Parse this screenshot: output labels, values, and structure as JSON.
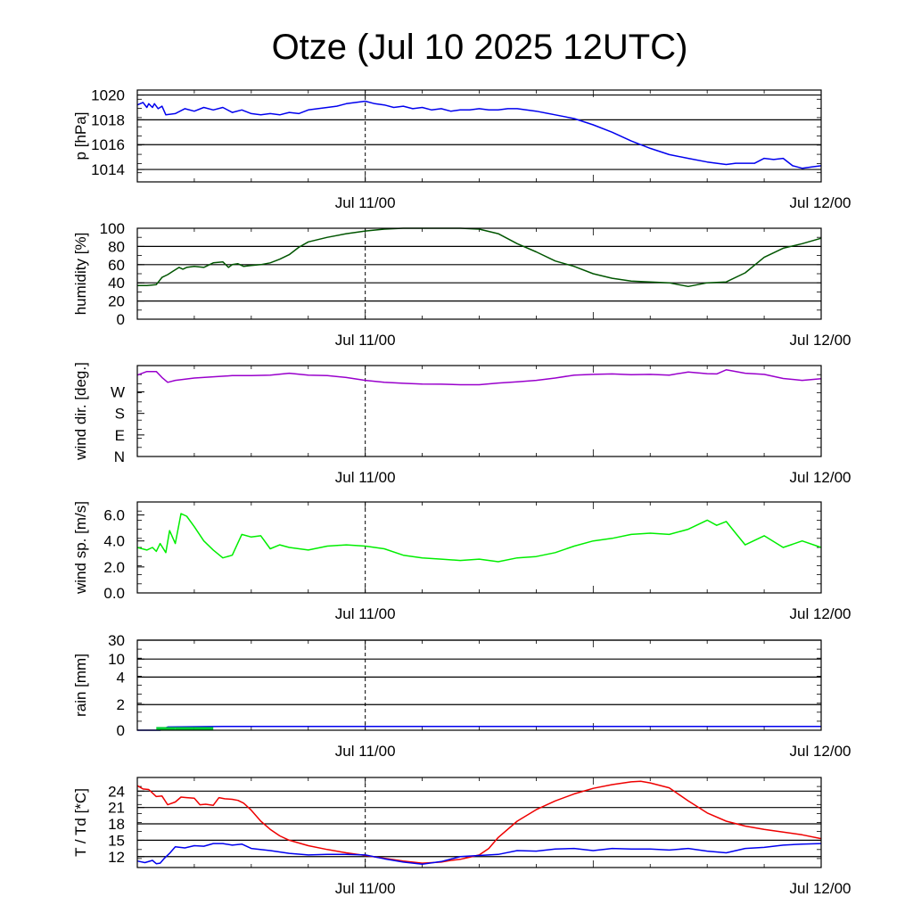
{
  "title": "Otze (Jul 10 2025 12UTC)",
  "x_tick_labels": [
    "Jul 11/00",
    "Jul 12/00"
  ],
  "chart_data": [
    {
      "type": "line",
      "id": "pressure",
      "ylabel": "p [hPa]",
      "ylim": [
        1013,
        1020.4
      ],
      "yticks": [
        1014,
        1016,
        1018,
        1020
      ],
      "gridlines": [
        1014,
        1016,
        1018,
        1020
      ],
      "x_unit": "hours since Jul 10 12UTC",
      "xlim": [
        0,
        36
      ],
      "series": [
        {
          "color": "#0000ee",
          "x": [
            0,
            0.3,
            0.5,
            0.6,
            0.8,
            0.9,
            1.1,
            1.3,
            1.5,
            2,
            2.5,
            3,
            3.5,
            4,
            4.5,
            5,
            5.5,
            6,
            6.5,
            7,
            7.5,
            8,
            8.5,
            9,
            9.5,
            10,
            10.5,
            11,
            11.5,
            12,
            12.5,
            13,
            13.5,
            14,
            14.5,
            15,
            15.5,
            16,
            16.5,
            17,
            17.5,
            18,
            18.5,
            19,
            19.5,
            20,
            21,
            22,
            23,
            24,
            25,
            26,
            27,
            28,
            29,
            30,
            31,
            31.5,
            32,
            32.5,
            33,
            33.5,
            34,
            34.5,
            35,
            35.5,
            36
          ],
          "y": [
            1019.2,
            1019.4,
            1019.0,
            1019.3,
            1019.0,
            1019.3,
            1018.9,
            1019.1,
            1018.4,
            1018.5,
            1018.9,
            1018.7,
            1019.0,
            1018.8,
            1019.0,
            1018.6,
            1018.8,
            1018.5,
            1018.4,
            1018.5,
            1018.4,
            1018.6,
            1018.5,
            1018.8,
            1018.9,
            1019.0,
            1019.1,
            1019.3,
            1019.4,
            1019.5,
            1019.3,
            1019.2,
            1019.0,
            1019.1,
            1018.9,
            1019.0,
            1018.8,
            1018.9,
            1018.7,
            1018.8,
            1018.8,
            1018.9,
            1018.8,
            1018.8,
            1018.9,
            1018.9,
            1018.7,
            1018.4,
            1018.1,
            1017.6,
            1017.0,
            1016.3,
            1015.7,
            1015.2,
            1014.9,
            1014.6,
            1014.4,
            1014.5,
            1014.5,
            1014.5,
            1014.9,
            1014.8,
            1014.9,
            1014.3,
            1014.1,
            1014.2,
            1014.3
          ]
        }
      ]
    },
    {
      "type": "line",
      "id": "humidity",
      "ylabel": "humidity [%]",
      "ylim": [
        0,
        100
      ],
      "yticks": [
        0,
        20,
        40,
        60,
        80,
        100
      ],
      "gridlines": [
        20,
        40,
        60,
        80
      ],
      "series": [
        {
          "color": "#005500",
          "x": [
            0,
            0.5,
            1,
            1.3,
            1.6,
            1.9,
            2.2,
            2.4,
            2.6,
            3,
            3.5,
            4,
            4.5,
            4.8,
            5,
            5.3,
            5.6,
            6,
            6.5,
            7,
            7.5,
            8,
            8.5,
            9,
            10,
            11,
            12,
            13,
            14,
            15,
            16,
            17,
            18,
            19,
            20,
            21,
            22,
            23,
            24,
            25,
            26,
            27,
            28,
            29,
            30,
            31,
            32,
            33,
            34,
            35,
            36
          ],
          "y": [
            37,
            37,
            38,
            46,
            49,
            53,
            57,
            55,
            57,
            58,
            57,
            62,
            63,
            57,
            60,
            61,
            58,
            59,
            60,
            62,
            66,
            71,
            79,
            85,
            90,
            94,
            97,
            99,
            100,
            100,
            100,
            100,
            99,
            94,
            83,
            74,
            64,
            58,
            50,
            45,
            42,
            41,
            40,
            36,
            40,
            41,
            51,
            68,
            78,
            83,
            89
          ]
        }
      ]
    },
    {
      "type": "line",
      "id": "wind_direction",
      "ylabel": "wind dir. [deg.]",
      "ylim": [
        0,
        380
      ],
      "yticks": [
        0,
        90,
        180,
        270
      ],
      "ytick_labels": [
        "N",
        "E",
        "S",
        "W"
      ],
      "gridlines": [],
      "series": [
        {
          "color": "#9900cc",
          "x": [
            0,
            0.5,
            1,
            1.3,
            1.6,
            2,
            3,
            4,
            5,
            6,
            7,
            8,
            9,
            10,
            11,
            12,
            13,
            14,
            15,
            16,
            17,
            18,
            19,
            20,
            21,
            22,
            23,
            24,
            25,
            26,
            27,
            28,
            29,
            30,
            30.5,
            31,
            32,
            33,
            34,
            35,
            36
          ],
          "y": [
            340,
            355,
            355,
            330,
            310,
            318,
            328,
            333,
            338,
            338,
            340,
            348,
            340,
            338,
            330,
            318,
            310,
            306,
            303,
            302,
            300,
            300,
            307,
            312,
            318,
            328,
            340,
            343,
            345,
            342,
            343,
            340,
            353,
            346,
            345,
            362,
            348,
            343,
            326,
            318,
            325
          ]
        }
      ]
    },
    {
      "type": "line",
      "id": "wind_speed",
      "ylabel": "wind sp. [m/s]",
      "ylim": [
        0,
        7.0
      ],
      "yticks": [
        0.0,
        2.0,
        4.0,
        6.0
      ],
      "ytick_labels": [
        "0.0",
        "2.0",
        "4.0",
        "6.0"
      ],
      "gridlines": [],
      "series": [
        {
          "color": "#00ee00",
          "x": [
            0,
            0.5,
            0.8,
            1,
            1.2,
            1.5,
            1.7,
            2,
            2.3,
            2.6,
            3,
            3.5,
            4,
            4.5,
            5,
            5.5,
            6,
            6.5,
            7,
            7.5,
            8,
            9,
            10,
            11,
            12,
            13,
            14,
            15,
            16,
            17,
            18,
            19,
            20,
            21,
            22,
            23,
            24,
            25,
            26,
            27,
            28,
            29,
            30,
            30.5,
            31,
            31.5,
            32,
            33,
            34,
            35,
            36
          ],
          "y": [
            3.5,
            3.3,
            3.5,
            3.2,
            3.8,
            3.1,
            4.8,
            3.8,
            6.1,
            5.9,
            5.1,
            4.0,
            3.3,
            2.7,
            2.9,
            4.5,
            4.3,
            4.4,
            3.4,
            3.7,
            3.5,
            3.3,
            3.6,
            3.7,
            3.6,
            3.4,
            2.9,
            2.7,
            2.6,
            2.5,
            2.6,
            2.4,
            2.7,
            2.8,
            3.1,
            3.6,
            4.0,
            4.2,
            4.5,
            4.6,
            4.5,
            4.9,
            5.6,
            5.2,
            5.5,
            4.6,
            3.7,
            4.4,
            3.5,
            4.0,
            3.5
          ]
        }
      ]
    },
    {
      "type": "area",
      "id": "rain",
      "ylabel": "rain [mm]",
      "scale": "nonlinear",
      "ylim": [
        0,
        30
      ],
      "yticks": [
        0,
        2,
        4,
        10,
        30
      ],
      "gridlines": [
        2,
        4,
        10,
        30
      ],
      "series": [
        {
          "color": "#0000ee",
          "kind": "accumulated line",
          "x": [
            0,
            1.2,
            1.6,
            4.5,
            36
          ],
          "y": [
            0,
            0,
            0.25,
            0.3,
            0.3
          ]
        },
        {
          "color": "#00cc33",
          "kind": "hourly bars",
          "x": [
            1.5,
            2.5,
            3.5
          ],
          "y": [
            0.25,
            0.25,
            0.25
          ]
        }
      ]
    },
    {
      "type": "line",
      "id": "temperature",
      "ylabel": "T / Td [*C]",
      "ylim": [
        10,
        26.5
      ],
      "yticks": [
        12,
        15,
        18,
        21,
        24
      ],
      "gridlines": [
        12,
        15,
        18,
        21,
        24
      ],
      "series": [
        {
          "color": "#ee0000",
          "x": [
            0,
            0.3,
            0.6,
            1,
            1.3,
            1.6,
            2,
            2.3,
            2.6,
            3,
            3.3,
            3.6,
            4,
            4.3,
            4.6,
            5,
            5.3,
            5.6,
            6,
            6.5,
            7,
            7.5,
            8,
            9,
            10,
            11,
            12,
            13,
            14,
            15,
            16,
            16.5,
            17,
            17.5,
            18,
            18.5,
            19,
            20,
            21,
            22,
            23,
            24,
            25,
            26,
            26.5,
            27,
            28,
            29,
            30,
            31,
            32,
            33,
            34,
            35,
            36
          ],
          "y": [
            25.0,
            24.4,
            24.3,
            23.0,
            23.1,
            21.5,
            22.0,
            22.9,
            22.8,
            22.7,
            21.5,
            21.6,
            21.4,
            22.8,
            22.6,
            22.5,
            22.3,
            21.8,
            20.5,
            18.5,
            17.0,
            15.8,
            15.0,
            14.0,
            13.3,
            12.7,
            12.2,
            11.7,
            11.2,
            10.8,
            11.0,
            11.3,
            11.5,
            11.9,
            12.3,
            13.5,
            15.5,
            18.5,
            20.6,
            22.2,
            23.5,
            24.5,
            25.2,
            25.7,
            25.8,
            25.5,
            24.6,
            22.2,
            20.0,
            18.5,
            17.6,
            17.0,
            16.5,
            16.0,
            15.3
          ]
        },
        {
          "color": "#0000ee",
          "x": [
            0,
            0.4,
            0.8,
            1,
            1.2,
            1.4,
            1.7,
            2,
            2.5,
            3,
            3.5,
            4,
            4.5,
            5,
            5.5,
            6,
            7,
            8,
            9,
            10,
            11,
            12,
            13,
            14,
            15,
            16,
            17,
            18,
            19,
            20,
            21,
            22,
            23,
            24,
            25,
            26,
            27,
            28,
            29,
            30,
            31,
            32,
            33,
            34,
            35,
            36
          ],
          "y": [
            11.2,
            10.9,
            11.3,
            10.7,
            10.8,
            11.6,
            12.6,
            13.8,
            13.6,
            14.0,
            13.9,
            14.4,
            14.4,
            14.1,
            14.3,
            13.5,
            13.1,
            12.6,
            12.3,
            12.4,
            12.4,
            12.3,
            11.6,
            11.0,
            10.6,
            11.1,
            12.0,
            12.2,
            12.4,
            13.1,
            13.0,
            13.4,
            13.5,
            13.1,
            13.5,
            13.4,
            13.4,
            13.2,
            13.5,
            13.0,
            12.7,
            13.5,
            13.7,
            14.1,
            14.3,
            14.4
          ]
        }
      ]
    }
  ]
}
